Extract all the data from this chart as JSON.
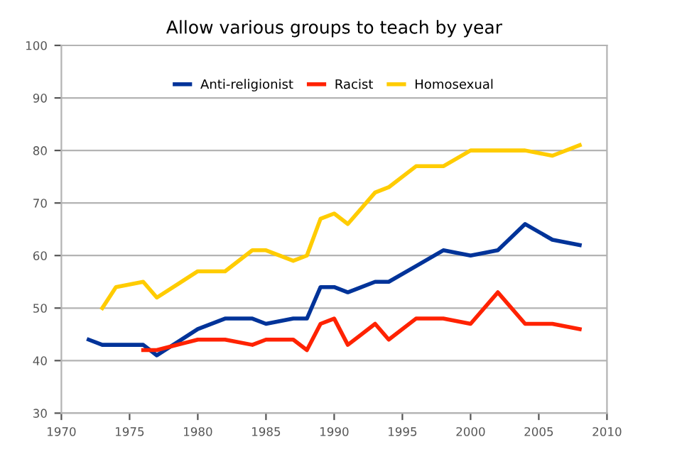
{
  "chart_data": {
    "type": "line",
    "title": "Allow various groups to teach by year",
    "series": [
      {
        "name": "Anti-religionist",
        "color": "#003399",
        "x": [
          1972,
          1973,
          1974,
          1976,
          1977,
          1980,
          1982,
          1984,
          1985,
          1987,
          1988,
          1989,
          1990,
          1991,
          1993,
          1994,
          1996,
          1998,
          2000,
          2002,
          2004,
          2006,
          2008
        ],
        "values": [
          44,
          43,
          43,
          43,
          41,
          46,
          48,
          48,
          47,
          48,
          48,
          54,
          54,
          53,
          55,
          55,
          58,
          61,
          60,
          61,
          66,
          63,
          62
        ]
      },
      {
        "name": "Racist",
        "color": "#ff2200",
        "x": [
          1976,
          1977,
          1980,
          1982,
          1984,
          1985,
          1987,
          1988,
          1989,
          1990,
          1991,
          1993,
          1994,
          1996,
          1998,
          2000,
          2002,
          2004,
          2006,
          2008
        ],
        "values": [
          42,
          42,
          44,
          44,
          43,
          44,
          44,
          42,
          47,
          48,
          43,
          47,
          44,
          48,
          48,
          47,
          53,
          47,
          47,
          46
        ]
      },
      {
        "name": "Homosexual",
        "color": "#ffcc00",
        "x": [
          1973,
          1974,
          1976,
          1977,
          1980,
          1982,
          1984,
          1985,
          1987,
          1988,
          1989,
          1990,
          1991,
          1993,
          1994,
          1996,
          1998,
          2000,
          2002,
          2004,
          2006,
          2008
        ],
        "values": [
          50,
          54,
          55,
          52,
          57,
          57,
          61,
          61,
          59,
          60,
          67,
          68,
          66,
          72,
          73,
          77,
          77,
          80,
          80,
          80,
          79,
          81
        ]
      }
    ],
    "xlim": [
      1970,
      2010
    ],
    "xticks": [
      1970,
      1975,
      1980,
      1985,
      1990,
      1995,
      2000,
      2005,
      2010
    ],
    "ylim": [
      30,
      100
    ],
    "yticks": [
      30,
      40,
      50,
      60,
      70,
      80,
      90,
      100
    ],
    "grid": "y",
    "legend": "top",
    "marker": "none",
    "line_style": "solid"
  }
}
